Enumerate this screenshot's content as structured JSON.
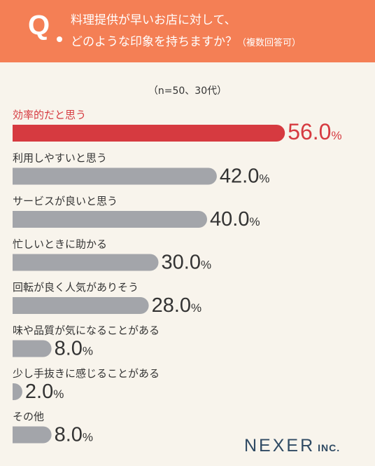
{
  "header": {
    "q_mark": "Q",
    "question_line1": "料理提供が早いお店に対して、",
    "question_line2": "どのような印象を持ちますか？",
    "question_note": "（複数回答可）"
  },
  "sample_note": "（n=50、30代）",
  "chart_data": {
    "type": "bar",
    "orientation": "horizontal",
    "title": "料理提供が早いお店に対して、どのような印象を持ちますか？（複数回答可）",
    "subtitle": "（n=50、30代）",
    "categories": [
      "効率的だと思う",
      "利用しやすいと思う",
      "サービスが良いと思う",
      "忙しいときに助かる",
      "回転が良く人気がありそう",
      "味や品質が気になることがある",
      "少し手抜きに感じることがある",
      "その他"
    ],
    "values": [
      56.0,
      42.0,
      40.0,
      30.0,
      28.0,
      8.0,
      2.0,
      8.0
    ],
    "value_labels": [
      "56.0",
      "42.0",
      "40.0",
      "30.0",
      "28.0",
      "8.0",
      "2.0",
      "8.0"
    ],
    "unit": "%",
    "highlight_index": 0,
    "colors": {
      "highlight": "#d63a40",
      "bar": "#a3a5aa",
      "label": "#333333"
    }
  },
  "logo": {
    "name": "NEXER",
    "suffix": "INC."
  }
}
